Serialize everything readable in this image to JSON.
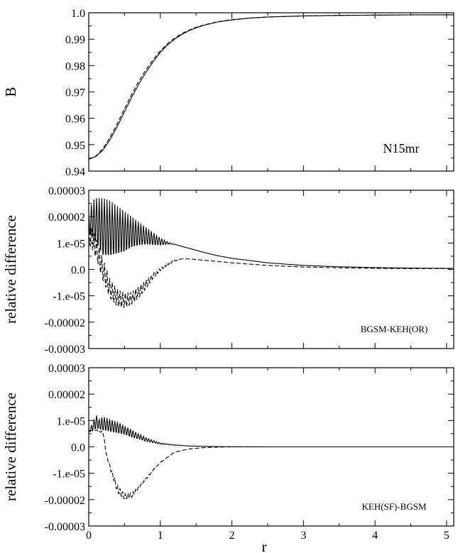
{
  "chart_data": [
    {
      "type": "line",
      "ylabel": "B",
      "xlabel": "",
      "annotation": "N15mr",
      "xlim": [
        0,
        5.1
      ],
      "ylim": [
        0.94,
        1.0
      ],
      "xticks": [
        0,
        1,
        2,
        3,
        4,
        5
      ],
      "yticks": [
        0.94,
        0.95,
        0.96,
        0.97,
        0.98,
        0.99,
        1.0
      ],
      "ytick_labels": [
        "0.94",
        "0.95",
        "0.96",
        "0.97",
        "0.98",
        "0.99",
        "1.0"
      ],
      "series": [
        {
          "style": "solid",
          "x": [
            0,
            0.1,
            0.2,
            0.3,
            0.4,
            0.5,
            0.6,
            0.7,
            0.8,
            0.9,
            1.0,
            1.1,
            1.2,
            1.3,
            1.4,
            1.5,
            1.6,
            1.8,
            2.0,
            2.25,
            2.5,
            3.0,
            3.5,
            4.0,
            4.5,
            5.0,
            5.1
          ],
          "y": [
            0.9445,
            0.9455,
            0.948,
            0.952,
            0.957,
            0.9625,
            0.968,
            0.973,
            0.9775,
            0.9815,
            0.985,
            0.9878,
            0.99,
            0.9918,
            0.9932,
            0.9943,
            0.9952,
            0.9965,
            0.9973,
            0.998,
            0.9984,
            0.9988,
            0.999,
            0.9991,
            0.9992,
            0.9992,
            0.9992
          ]
        },
        {
          "style": "dashed",
          "x": [
            0,
            0.1,
            0.2,
            0.3,
            0.4,
            0.5,
            0.6,
            0.7,
            0.8,
            0.9,
            1.0,
            1.1,
            1.2,
            1.3,
            1.4,
            1.5,
            1.6,
            1.8,
            2.0,
            2.25,
            2.5,
            3.0,
            3.5,
            4.0,
            4.5,
            5.0,
            5.1
          ],
          "y": [
            0.9445,
            0.9457,
            0.9486,
            0.9529,
            0.9581,
            0.9637,
            0.9691,
            0.9741,
            0.9785,
            0.9823,
            0.9856,
            0.9883,
            0.9904,
            0.9921,
            0.9934,
            0.9945,
            0.9953,
            0.9966,
            0.9974,
            0.998,
            0.9984,
            0.9988,
            0.999,
            0.9991,
            0.9992,
            0.9992,
            0.9992
          ]
        }
      ]
    },
    {
      "type": "line",
      "ylabel": "relative difference",
      "xlabel": "",
      "annotation": "BGSM-KEH(OR)",
      "xlim": [
        0,
        5.1
      ],
      "ylim": [
        -3e-05,
        3e-05
      ],
      "xticks": [
        0,
        1,
        2,
        3,
        4,
        5
      ],
      "yticks": [
        -3e-05,
        -2e-05,
        -1e-05,
        0,
        1e-05,
        2e-05,
        3e-05
      ],
      "ytick_labels": [
        "-0.00003",
        "-0.00002",
        "-1.e-05",
        "0.0",
        "1.e-05",
        "0.00002",
        "0.00003"
      ],
      "series": [
        {
          "style": "solid",
          "oscillating": true,
          "x": [
            0,
            0.05,
            0.1,
            0.2,
            0.3,
            0.4,
            0.5,
            0.6,
            0.7,
            0.8,
            0.9,
            1.0,
            1.1,
            1.2,
            1.4,
            1.6,
            1.8,
            2.0,
            2.5,
            3.0,
            3.5,
            4.0,
            4.5,
            5.0,
            5.1
          ],
          "y_high": [
            2.1e-05,
            2.6e-05,
            2.7e-05,
            2.7e-05,
            2.6e-05,
            2.4e-05,
            2.2e-05,
            2e-05,
            1.8e-05,
            1.6e-05,
            1.4e-05,
            1.2e-05,
            1.05e-05,
            9.5e-06,
            8e-06,
            6.5e-06,
            5.2e-06,
            4.2e-06,
            2.5e-06,
            1.5e-06,
            1e-06,
            7e-07,
            5e-07,
            4e-07,
            4e-07
          ],
          "y_low": [
            1.3e-05,
            1.15e-05,
            9e-06,
            3.5e-06,
            3.5e-06,
            4.5e-06,
            5.5e-06,
            7.5e-06,
            8.5e-06,
            9e-06,
            9e-06,
            9e-06,
            9.5e-06,
            9.5e-06,
            8e-06,
            6.5e-06,
            5.2e-06,
            4.2e-06,
            2.5e-06,
            1.5e-06,
            1e-06,
            7e-07,
            5e-07,
            4e-07,
            4e-07
          ]
        },
        {
          "style": "dashed",
          "oscillating": true,
          "x": [
            0,
            0.05,
            0.1,
            0.2,
            0.3,
            0.4,
            0.5,
            0.6,
            0.7,
            0.8,
            0.9,
            1.0,
            1.1,
            1.2,
            1.3,
            1.4,
            1.6,
            1.8,
            2.0,
            2.5,
            3.0,
            3.5,
            4.0,
            4.5,
            5.0,
            5.1
          ],
          "y_high": [
            1.7e-05,
            1.5e-05,
            1.2e-05,
            4e-06,
            -4e-06,
            -7.5e-06,
            -9e-06,
            -8.5e-06,
            -6.5e-06,
            -4e-06,
            -1.5e-06,
            5e-07,
            2.5e-06,
            3.5e-06,
            4e-06,
            4e-06,
            3.5e-06,
            3e-06,
            2.5e-06,
            1.5e-06,
            9e-07,
            6e-07,
            4e-07,
            3e-07,
            3e-07,
            3e-07
          ],
          "y_low": [
            9e-06,
            7e-06,
            4e-06,
            -5e-06,
            -1.15e-05,
            -1.45e-05,
            -1.5e-05,
            -1.35e-05,
            -1.1e-05,
            -7.5e-06,
            -3.5e-06,
            -5e-07,
            1.5e-06,
            3e-06,
            4e-06,
            4e-06,
            3.5e-06,
            3e-06,
            2.5e-06,
            1.5e-06,
            9e-07,
            6e-07,
            4e-07,
            3e-07,
            3e-07,
            3e-07
          ]
        }
      ]
    },
    {
      "type": "line",
      "ylabel": "relative difference",
      "xlabel": "r",
      "annotation": "KEH(SF)-BGSM",
      "xlim": [
        0,
        5.1
      ],
      "ylim": [
        -3e-05,
        3e-05
      ],
      "xticks": [
        0,
        1,
        2,
        3,
        4,
        5
      ],
      "xtick_labels": [
        "0",
        "1",
        "2",
        "3",
        "4",
        "5"
      ],
      "yticks": [
        -3e-05,
        -2e-05,
        -1e-05,
        0,
        1e-05,
        2e-05,
        3e-05
      ],
      "ytick_labels": [
        "-0.00003",
        "-0.00002",
        "-1.e-05",
        "0.0",
        "1.e-05",
        "0.00002",
        "0.00003"
      ],
      "series": [
        {
          "style": "solid",
          "oscillating": true,
          "x": [
            0,
            0.05,
            0.1,
            0.15,
            0.2,
            0.3,
            0.4,
            0.5,
            0.6,
            0.7,
            0.8,
            0.9,
            1.0,
            1.2,
            1.4,
            1.6,
            1.8,
            2.0,
            2.5,
            3.0,
            4.0,
            5.0,
            5.1
          ],
          "y_high": [
            6.5e-06,
            9e-06,
            1.22e-05,
            1.05e-05,
            1.15e-05,
            1.05e-05,
            9.5e-06,
            8e-06,
            6.5e-06,
            5e-06,
            3.5e-06,
            2.5e-06,
            1.5e-06,
            8e-07,
            4e-07,
            2e-07,
            1e-07,
            5e-08,
            0,
            0,
            0,
            0,
            0
          ],
          "y_low": [
            5.5e-06,
            6e-06,
            6.5e-06,
            6.5e-06,
            6e-06,
            5.5e-06,
            5e-06,
            4.5e-06,
            3.5e-06,
            2.8e-06,
            2e-06,
            1.5e-06,
            1e-06,
            6e-07,
            3e-07,
            2e-07,
            1e-07,
            5e-08,
            0,
            0,
            0,
            0,
            0
          ]
        },
        {
          "style": "dashed",
          "oscillating": true,
          "x": [
            0,
            0.1,
            0.2,
            0.25,
            0.3,
            0.4,
            0.5,
            0.6,
            0.7,
            0.8,
            0.9,
            1.0,
            1.2,
            1.4,
            1.6,
            1.8,
            2.0,
            2.5,
            3.0,
            4.0,
            5.0,
            5.1
          ],
          "y_high": [
            6e-06,
            6.5e-06,
            6e-06,
            -3e-06,
            -7e-06,
            -1.45e-05,
            -1.78e-05,
            -1.75e-05,
            -1.5e-05,
            -1.18e-05,
            -8.5e-06,
            -5.8e-06,
            -2e-06,
            -8e-07,
            -3e-07,
            -1e-07,
            0,
            0,
            0,
            0,
            0,
            0
          ],
          "y_low": [
            6e-06,
            6.2e-06,
            5e-06,
            -4e-06,
            -8.5e-06,
            -1.75e-05,
            -2e-05,
            -1.93e-05,
            -1.6e-05,
            -1.25e-05,
            -9e-06,
            -6e-06,
            -2e-06,
            -8e-07,
            -3e-07,
            -1e-07,
            0,
            0,
            0,
            0,
            0,
            0
          ]
        }
      ]
    }
  ]
}
